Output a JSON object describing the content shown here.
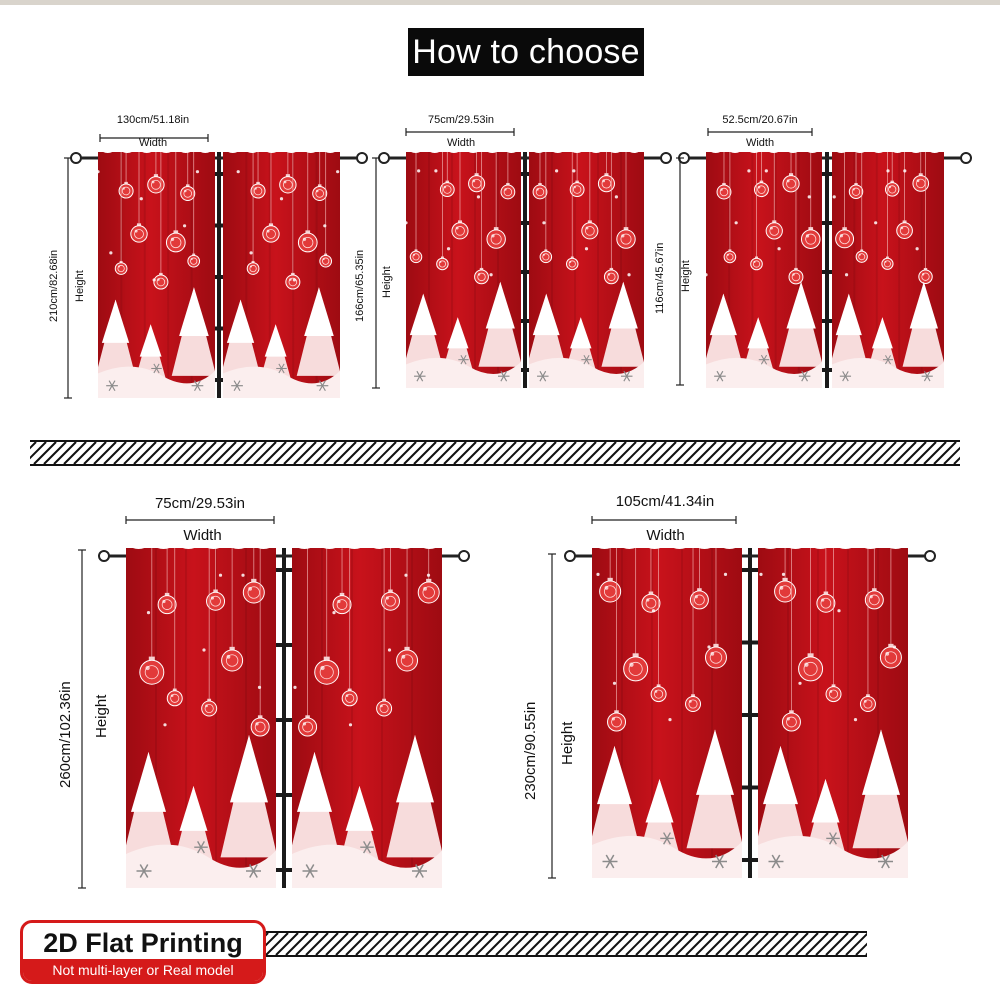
{
  "header": {
    "title": "How to choose"
  },
  "sizes": [
    {
      "width_value": "130cm/51.18in",
      "width_word": "Width",
      "height_value": "210cm/82.68in",
      "height_word": "Height"
    },
    {
      "width_value": "75cm/29.53in",
      "width_word": "Width",
      "height_value": "166cm/65.35in",
      "height_word": "Height"
    },
    {
      "width_value": "52.5cm/20.67in",
      "width_word": "Width",
      "height_value": "116cm/45.67in",
      "height_word": "Height"
    },
    {
      "width_value": "75cm/29.53in",
      "width_word": "Width",
      "height_value": "260cm/102.36in",
      "height_word": "Height"
    },
    {
      "width_value": "105cm/41.34in",
      "width_word": "Width",
      "height_value": "230cm/90.55in",
      "height_word": "Height"
    }
  ],
  "badge": {
    "title": "2D Flat Printing",
    "subtitle": "Not multi-layer or Real model"
  },
  "colors": {
    "curtain_red": "#c8121b",
    "curtain_dark": "#9e0b12",
    "badge_red": "#d51a1a",
    "title_bg": "#0a0a0a"
  },
  "icons": {
    "ornament": "ornament-icon",
    "tree": "tree-icon",
    "snowflake": "snowflake-icon"
  }
}
